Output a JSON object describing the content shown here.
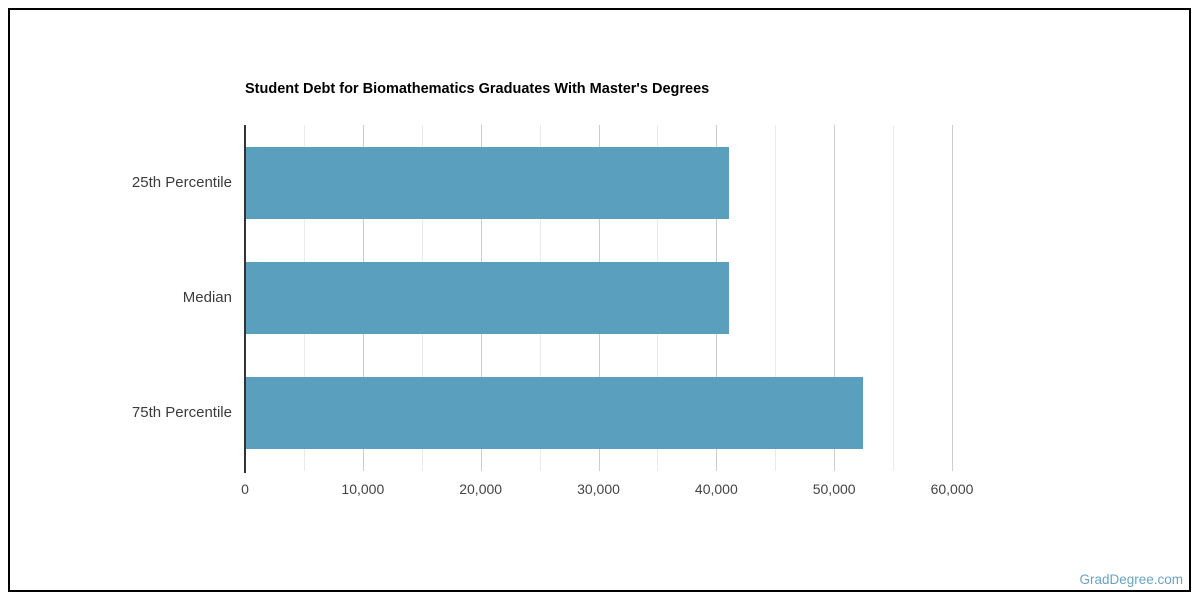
{
  "chart_data": {
    "type": "bar",
    "orientation": "horizontal",
    "title": "Student Debt for Biomathematics Graduates With Master's Degrees",
    "categories": [
      "25th Percentile",
      "Median",
      "75th Percentile"
    ],
    "values": [
      41000,
      41000,
      52350
    ],
    "xlabel": "",
    "ylabel": "",
    "xlim": [
      0,
      60000
    ],
    "x_ticks": [
      0,
      10000,
      20000,
      30000,
      40000,
      50000,
      60000
    ],
    "x_tick_labels": [
      "0",
      "10,000",
      "20,000",
      "30,000",
      "40,000",
      "50,000",
      "60,000"
    ],
    "minor_gridline_step": 5000,
    "grid": true,
    "legend_position": "none",
    "bar_color": "#5a9fbd",
    "axis_color": "#333333",
    "major_gridline_color": "#cccccc",
    "minor_gridline_color": "#ebebeb"
  },
  "footer": {
    "watermark": "GradDegree.com",
    "watermark_color": "#69a4c6"
  }
}
